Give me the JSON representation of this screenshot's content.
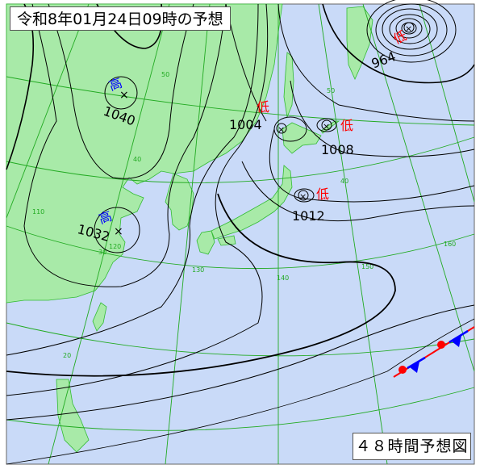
{
  "title": "令和8年01月24日09時の予想",
  "forecast_label": "４８時間予想図",
  "colors": {
    "sea": "#c9daf8",
    "land": "#a8eaa8",
    "isobar": "#000000",
    "grid": "#22aa22",
    "high": "#0000ff",
    "low": "#ff0000",
    "warm_front": "#ff0000",
    "cold_front": "#0000ff"
  },
  "pressure_systems": [
    {
      "type": "高",
      "pressure": "1040"
    },
    {
      "type": "高",
      "pressure": "1032"
    },
    {
      "type": "低",
      "pressure": "964"
    },
    {
      "type": "低",
      "pressure": "1004"
    },
    {
      "type": "低",
      "pressure": "1008"
    },
    {
      "type": "低",
      "pressure": "1012"
    }
  ],
  "grid_labels": {
    "lat": [
      "50",
      "40",
      "30",
      "20",
      "50",
      "40"
    ],
    "lon": [
      "110",
      "120",
      "130",
      "140",
      "150",
      "160"
    ]
  },
  "fronts": [
    {
      "kind": "stationary-front"
    }
  ]
}
